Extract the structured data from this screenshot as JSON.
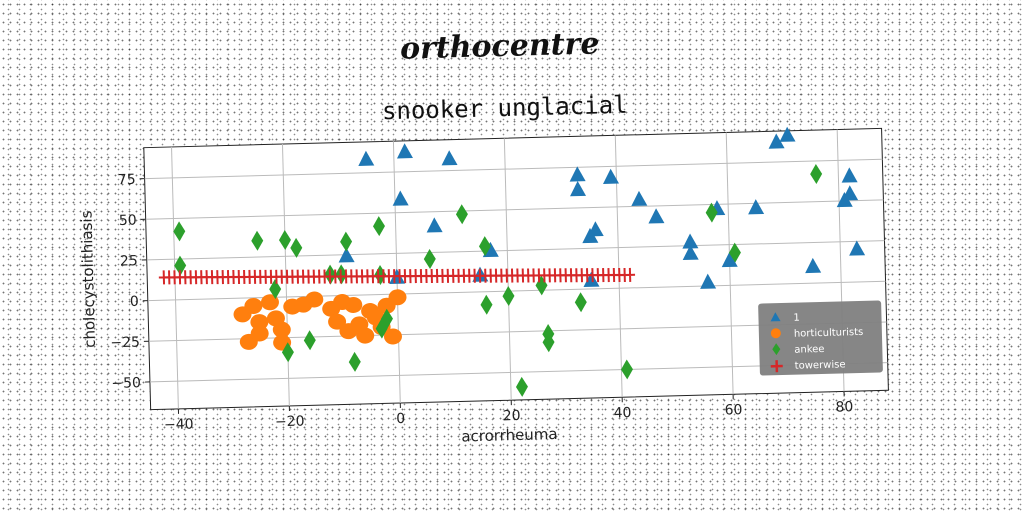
{
  "suptitle": "orthocentre",
  "chart_data": {
    "type": "scatter",
    "title": "snooker unglacial",
    "xlabel": "acrorrheuma",
    "ylabel": "cholecystolithiasis",
    "xlim": [
      -45,
      88
    ],
    "ylim": [
      -67,
      94
    ],
    "xticks": [
      -40,
      -20,
      0,
      20,
      40,
      60,
      80
    ],
    "yticks": [
      -50,
      -25,
      0,
      25,
      50,
      75
    ],
    "grid": true,
    "legend_position": "bottom-right",
    "series": [
      {
        "name": "1",
        "marker": "triangle",
        "color": "#1f77b4",
        "points": [
          [
            -5,
            83
          ],
          [
            2,
            87
          ],
          [
            10,
            82
          ],
          [
            1,
            58
          ],
          [
            -9,
            24
          ],
          [
            7,
            41
          ],
          [
            17,
            25
          ],
          [
            15,
            10
          ],
          [
            0,
            10
          ],
          [
            33,
            70
          ],
          [
            33,
            61
          ],
          [
            39,
            68
          ],
          [
            36,
            36
          ],
          [
            35,
            32
          ],
          [
            35,
            5
          ],
          [
            44,
            54
          ],
          [
            47,
            43
          ],
          [
            53,
            27
          ],
          [
            53,
            20
          ],
          [
            56,
            2
          ],
          [
            58,
            47
          ],
          [
            60,
            15
          ],
          [
            65,
            47
          ],
          [
            69,
            87
          ],
          [
            71,
            91
          ],
          [
            75,
            10
          ],
          [
            81,
            50
          ],
          [
            82,
            54
          ],
          [
            82,
            65
          ],
          [
            83,
            20
          ]
        ]
      },
      {
        "name": "horticulturists",
        "marker": "circle",
        "color": "#ff7f0e",
        "points": [
          [
            -28,
            -10
          ],
          [
            -26,
            -5
          ],
          [
            -25,
            -15
          ],
          [
            -27,
            -27
          ],
          [
            -25,
            -22
          ],
          [
            -22,
            -13
          ],
          [
            -21,
            -20
          ],
          [
            -23,
            -3
          ],
          [
            -19,
            -6
          ],
          [
            -21,
            -28
          ],
          [
            -17,
            -5
          ],
          [
            -15,
            -2
          ],
          [
            -12,
            -8
          ],
          [
            -10,
            -4
          ],
          [
            -8,
            -6
          ],
          [
            -11,
            -16
          ],
          [
            -9,
            -22
          ],
          [
            -7,
            -18
          ],
          [
            -6,
            -25
          ],
          [
            -5,
            -10
          ],
          [
            -3,
            -20
          ],
          [
            -2,
            -7
          ],
          [
            0,
            -2
          ],
          [
            -1,
            -26
          ],
          [
            -4,
            -14
          ]
        ]
      },
      {
        "name": "ankee",
        "marker": "diamond",
        "color": "#2ca02c",
        "points": [
          [
            -39,
            42
          ],
          [
            -39,
            21
          ],
          [
            -25,
            35
          ],
          [
            -20,
            35
          ],
          [
            -18,
            30
          ],
          [
            -22,
            5
          ],
          [
            -20,
            -34
          ],
          [
            -16,
            -27
          ],
          [
            -12,
            13
          ],
          [
            -10,
            13
          ],
          [
            -9,
            33
          ],
          [
            -8,
            -41
          ],
          [
            -3,
            42
          ],
          [
            -3,
            12
          ],
          [
            -3,
            -21
          ],
          [
            -2,
            -15
          ],
          [
            6,
            21
          ],
          [
            12,
            48
          ],
          [
            16,
            28
          ],
          [
            16,
            -8
          ],
          [
            20,
            -3
          ],
          [
            22,
            -59
          ],
          [
            26,
            3
          ],
          [
            27,
            -32
          ],
          [
            27,
            -27
          ],
          [
            33,
            -8
          ],
          [
            41,
            -50
          ],
          [
            57,
            45
          ],
          [
            61,
            20
          ],
          [
            76,
            67
          ]
        ]
      },
      {
        "name": "towerwise",
        "marker": "plus",
        "color": "#d62728",
        "line": {
          "from": [
            -42,
            14
          ],
          "to": [
            42,
            8
          ],
          "count": 88
        }
      }
    ]
  }
}
